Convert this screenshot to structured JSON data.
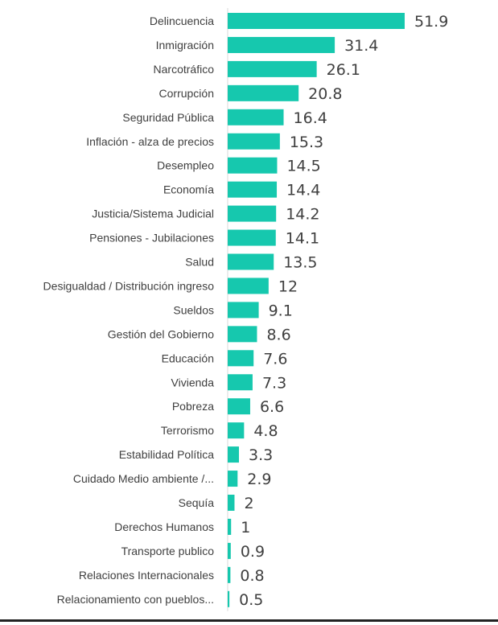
{
  "chart_data": {
    "type": "bar",
    "orientation": "horizontal",
    "categories": [
      "Delincuencia",
      "Inmigración",
      "Narcotráfico",
      "Corrupción",
      "Seguridad Pública",
      "Inflación - alza de precios",
      "Desempleo",
      "Economía",
      "Justicia/Sistema Judicial",
      "Pensiones - Jubilaciones",
      "Salud",
      "Desigualdad / Distribución ingreso",
      "Sueldos",
      "Gestión del Gobierno",
      "Educación",
      "Vivienda",
      "Pobreza",
      "Terrorismo",
      "Estabilidad Política",
      "Cuidado Medio ambiente /...",
      "Sequía",
      "Derechos Humanos",
      "Transporte publico",
      "Relaciones Internacionales",
      "Relacionamiento con pueblos..."
    ],
    "values": [
      51.9,
      31.4,
      26.1,
      20.8,
      16.4,
      15.3,
      14.5,
      14.4,
      14.2,
      14.1,
      13.5,
      12,
      9.1,
      8.6,
      7.6,
      7.3,
      6.6,
      4.8,
      3.3,
      2.9,
      2,
      1,
      0.9,
      0.8,
      0.5
    ],
    "value_labels": [
      "51.9",
      "31.4",
      "26.1",
      "20.8",
      "16.4",
      "15.3",
      "14.5",
      "14.4",
      "14.2",
      "14.1",
      "13.5",
      "12",
      "9.1",
      "8.6",
      "7.6",
      "7.3",
      "6.6",
      "4.8",
      "3.3",
      "2.9",
      "2",
      "1",
      "0.9",
      "0.8",
      "0.5"
    ],
    "xlim": [
      0,
      51.9
    ],
    "bar_color": "#16c8ae",
    "grid": false,
    "legend": "none"
  }
}
